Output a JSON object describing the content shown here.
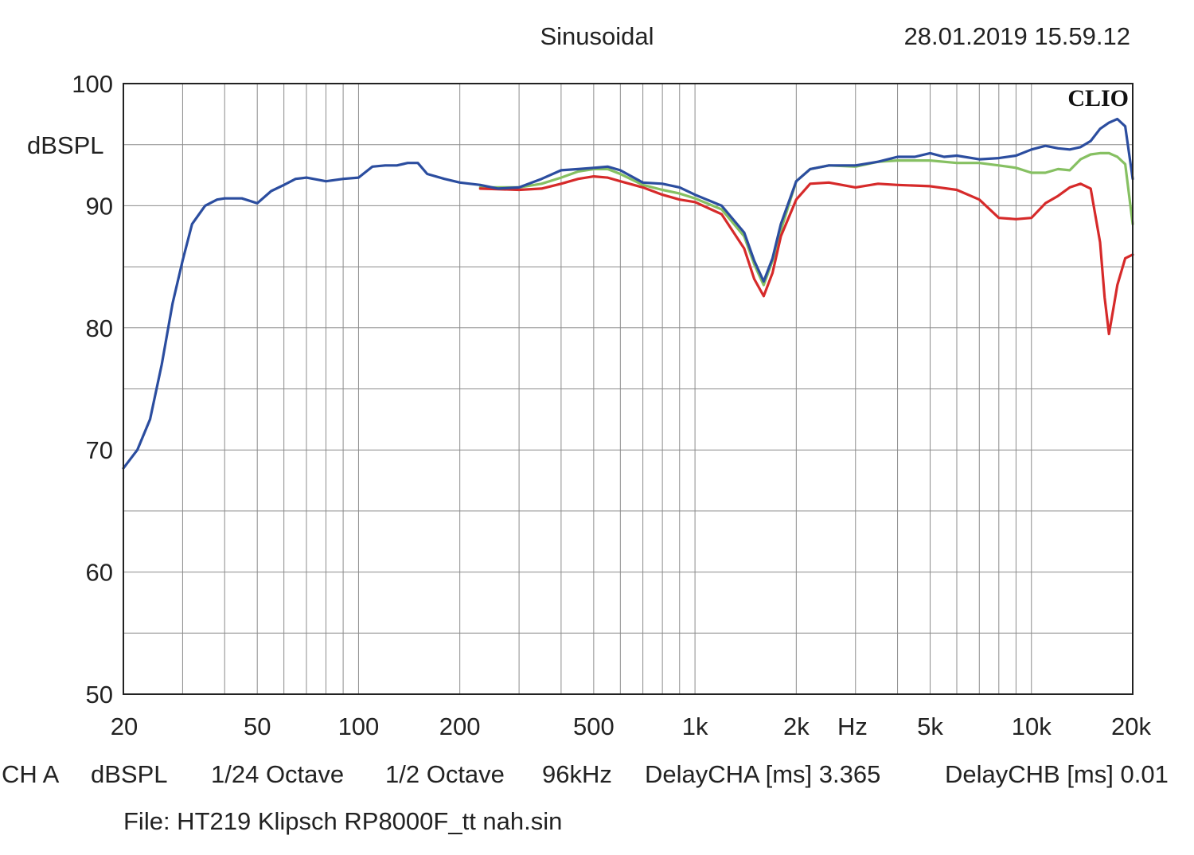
{
  "chart_data": {
    "type": "line",
    "title": "Sinusoidal",
    "timestamp": "28.01.2019 15.59.12",
    "brand": "CLIO",
    "ylabel": "dBSPL",
    "xlabel": "Hz",
    "xscale": "log",
    "xlim": [
      20,
      20000
    ],
    "ylim": [
      50,
      100
    ],
    "grid": true,
    "y_ticks": [
      {
        "value": 100,
        "label": "100"
      },
      {
        "value": 90,
        "label": "90"
      },
      {
        "value": 80,
        "label": "80"
      },
      {
        "value": 70,
        "label": "70"
      },
      {
        "value": 60,
        "label": "60"
      },
      {
        "value": 50,
        "label": "50"
      }
    ],
    "x_ticks": [
      {
        "value": 20,
        "label": "20"
      },
      {
        "value": 50,
        "label": "50"
      },
      {
        "value": 100,
        "label": "100"
      },
      {
        "value": 200,
        "label": "200"
      },
      {
        "value": 500,
        "label": "500"
      },
      {
        "value": 1000,
        "label": "1k"
      },
      {
        "value": 2000,
        "label": "2k"
      },
      {
        "value": 5000,
        "label": "5k"
      },
      {
        "value": 10000,
        "label": "10k"
      },
      {
        "value": 20000,
        "label": "20k"
      }
    ],
    "series": [
      {
        "name": "green",
        "color": "#86c062",
        "x": [
          230,
          300,
          350,
          400,
          450,
          500,
          550,
          600,
          700,
          800,
          900,
          1000,
          1200,
          1400,
          1500,
          1600,
          1700,
          1800,
          2000,
          2200,
          2500,
          3000,
          3500,
          4000,
          5000,
          6000,
          7000,
          8000,
          9000,
          10000,
          11000,
          12000,
          13000,
          14000,
          15000,
          16000,
          17000,
          18000,
          19000,
          20000
        ],
        "y": [
          91.5,
          91.5,
          91.8,
          92.3,
          92.8,
          93.0,
          93.0,
          92.6,
          91.7,
          91.3,
          91.0,
          90.6,
          89.7,
          87.5,
          85.2,
          83.5,
          85.5,
          88.0,
          92.0,
          93.0,
          93.3,
          93.2,
          93.6,
          93.7,
          93.7,
          93.5,
          93.5,
          93.3,
          93.1,
          92.7,
          92.7,
          93.0,
          92.9,
          93.8,
          94.2,
          94.3,
          94.3,
          94.0,
          93.4,
          88.5
        ]
      },
      {
        "name": "red",
        "color": "#d62a2a",
        "x": [
          230,
          300,
          350,
          400,
          450,
          500,
          550,
          600,
          700,
          800,
          900,
          1000,
          1200,
          1400,
          1500,
          1600,
          1700,
          1800,
          2000,
          2200,
          2500,
          3000,
          3500,
          4000,
          5000,
          6000,
          7000,
          8000,
          9000,
          10000,
          11000,
          12000,
          13000,
          14000,
          15000,
          16000,
          16500,
          17000,
          17500,
          18000,
          19000,
          20000
        ],
        "y": [
          91.4,
          91.3,
          91.4,
          91.8,
          92.2,
          92.4,
          92.3,
          92.0,
          91.5,
          90.9,
          90.5,
          90.3,
          89.3,
          86.5,
          84.0,
          82.6,
          84.5,
          87.5,
          90.5,
          91.8,
          91.9,
          91.5,
          91.8,
          91.7,
          91.6,
          91.3,
          90.5,
          89.0,
          88.9,
          89.0,
          90.2,
          90.8,
          91.5,
          91.8,
          91.4,
          87.0,
          82.5,
          79.5,
          81.5,
          83.5,
          85.7,
          86.0
        ]
      },
      {
        "name": "blue",
        "color": "#2b4d9f",
        "x": [
          20,
          22,
          24,
          26,
          28,
          30,
          32,
          35,
          38,
          40,
          45,
          50,
          55,
          60,
          65,
          70,
          80,
          90,
          100,
          110,
          120,
          130,
          140,
          150,
          160,
          180,
          200,
          230,
          260,
          300,
          350,
          400,
          450,
          500,
          550,
          600,
          700,
          800,
          900,
          1000,
          1200,
          1400,
          1500,
          1600,
          1700,
          1800,
          2000,
          2200,
          2500,
          3000,
          3500,
          4000,
          4500,
          5000,
          5500,
          6000,
          7000,
          8000,
          9000,
          10000,
          11000,
          12000,
          13000,
          14000,
          15000,
          16000,
          17000,
          18000,
          19000,
          20000
        ],
        "y": [
          68.5,
          70.0,
          72.5,
          77.0,
          82.0,
          85.5,
          88.5,
          90.0,
          90.5,
          90.6,
          90.6,
          90.2,
          91.2,
          91.7,
          92.2,
          92.3,
          92.0,
          92.2,
          92.3,
          93.2,
          93.3,
          93.3,
          93.5,
          93.5,
          92.6,
          92.2,
          91.9,
          91.7,
          91.4,
          91.5,
          92.2,
          92.9,
          93.0,
          93.1,
          93.2,
          92.9,
          91.9,
          91.8,
          91.5,
          90.9,
          90.0,
          87.8,
          85.5,
          83.8,
          85.7,
          88.5,
          92.0,
          93.0,
          93.3,
          93.3,
          93.6,
          94.0,
          94.0,
          94.3,
          94.0,
          94.1,
          93.8,
          93.9,
          94.1,
          94.6,
          94.9,
          94.7,
          94.6,
          94.8,
          95.3,
          96.3,
          96.8,
          97.1,
          96.5,
          92.2
        ]
      }
    ]
  },
  "footer": {
    "channel": "CH A",
    "unit": "dBSPL",
    "smoothing": "1/24 Octave",
    "resolution": "1/2 Octave",
    "sample_rate": "96kHz",
    "delay_cha": "DelayCHA [ms] 3.365",
    "delay_chb": "DelayCHB [ms] 0.01",
    "file": "File: HT219 Klipsch RP8000F_tt nah.sin"
  }
}
